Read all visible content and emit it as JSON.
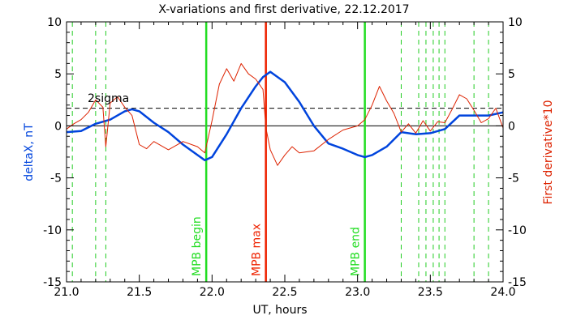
{
  "chart_data": {
    "type": "line",
    "title": "X-variations and first derivative, 22.12.2017",
    "xlabel": "UT, hours",
    "ylabel_left": "deltaX, nT",
    "ylabel_right": "First derivative*10",
    "xlim": [
      21.0,
      24.0
    ],
    "ylim": [
      -15,
      10
    ],
    "x_ticks": [
      "21.0",
      "21.5",
      "22.0",
      "22.5",
      "23.0",
      "23.5",
      "24.0"
    ],
    "y_ticks": [
      "10",
      "5",
      "0",
      "-5",
      "-10",
      "-15"
    ],
    "colors": {
      "deltaX": "#0044dd",
      "derivative": "#dd2200",
      "mpb_edges": "#22dd22",
      "mpb_max": "#ee2200",
      "markers": "#22cc22"
    },
    "threshold": {
      "label": "2sigma",
      "y": 1.7
    },
    "zero_line": 0,
    "vlines": [
      {
        "x": 21.96,
        "label": "MPB begin",
        "kind": "edge"
      },
      {
        "x": 22.37,
        "label": "MPB max",
        "kind": "max"
      },
      {
        "x": 23.05,
        "label": "MPB end",
        "kind": "edge"
      }
    ],
    "marker_lines": [
      21.04,
      21.2,
      21.27,
      23.3,
      23.42,
      23.47,
      23.52,
      23.56,
      23.6,
      23.8,
      23.9
    ],
    "series": [
      {
        "name": "deltaX",
        "x": [
          21.0,
          21.1,
          21.2,
          21.3,
          21.4,
          21.45,
          21.5,
          21.6,
          21.7,
          21.8,
          21.9,
          21.95,
          22.0,
          22.1,
          22.2,
          22.3,
          22.35,
          22.4,
          22.5,
          22.6,
          22.7,
          22.8,
          22.9,
          23.0,
          23.05,
          23.1,
          23.2,
          23.3,
          23.4,
          23.5,
          23.6,
          23.7,
          23.8,
          23.9,
          24.0
        ],
        "values": [
          -0.6,
          -0.5,
          0.2,
          0.6,
          1.4,
          1.6,
          1.4,
          0.3,
          -0.6,
          -1.8,
          -2.8,
          -3.3,
          -3.0,
          -0.8,
          1.7,
          3.8,
          4.7,
          5.2,
          4.2,
          2.3,
          0.0,
          -1.7,
          -2.2,
          -2.8,
          -3.0,
          -2.8,
          -2.0,
          -0.6,
          -0.8,
          -0.7,
          -0.3,
          1.0,
          1.0,
          1.0,
          1.3
        ]
      },
      {
        "name": "First derivative",
        "x": [
          21.0,
          21.05,
          21.1,
          21.15,
          21.2,
          21.25,
          21.27,
          21.3,
          21.35,
          21.4,
          21.45,
          21.5,
          21.55,
          21.6,
          21.7,
          21.8,
          21.9,
          21.95,
          22.0,
          22.05,
          22.1,
          22.15,
          22.2,
          22.25,
          22.3,
          22.35,
          22.37,
          22.4,
          22.45,
          22.5,
          22.55,
          22.6,
          22.7,
          22.8,
          22.9,
          23.0,
          23.05,
          23.1,
          23.15,
          23.2,
          23.25,
          23.3,
          23.35,
          23.4,
          23.45,
          23.5,
          23.55,
          23.6,
          23.65,
          23.7,
          23.75,
          23.8,
          23.85,
          23.9,
          23.95,
          24.0
        ],
        "values": [
          -0.3,
          0.2,
          0.6,
          1.3,
          2.5,
          1.8,
          -2.0,
          2.2,
          2.8,
          1.8,
          1.0,
          -1.8,
          -2.2,
          -1.5,
          -2.3,
          -1.5,
          -2.0,
          -2.6,
          0.5,
          4.0,
          5.5,
          4.3,
          6.0,
          5.0,
          4.5,
          3.5,
          -0.2,
          -2.3,
          -3.8,
          -2.8,
          -2.0,
          -2.6,
          -2.4,
          -1.3,
          -0.4,
          0.0,
          0.6,
          2.0,
          3.8,
          2.4,
          1.2,
          -0.6,
          0.2,
          -0.7,
          0.5,
          -0.5,
          0.4,
          0.3,
          1.6,
          3.0,
          2.6,
          1.5,
          0.3,
          0.7,
          1.7,
          -0.2
        ]
      }
    ]
  }
}
